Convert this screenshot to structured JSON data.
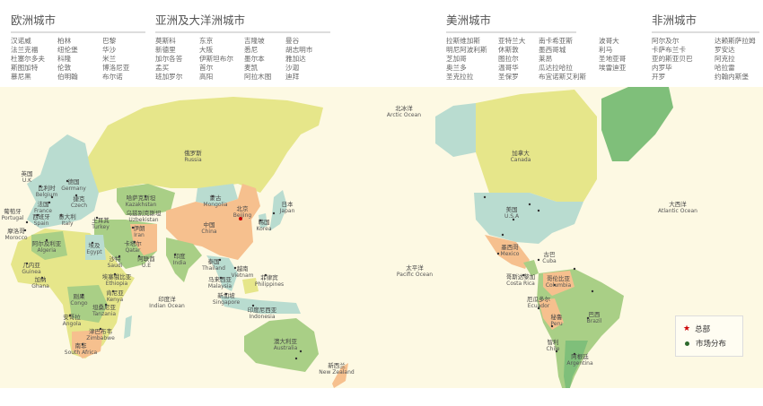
{
  "regions": [
    {
      "title": "欧洲城市",
      "columns": [
        [
          "汉诺威",
          "法兰克福",
          "杜塞尔多夫",
          "斯图加特",
          "慕尼黑"
        ],
        [
          "柏林",
          "纽伦堡",
          "科隆",
          "伦敦",
          "伯明翰"
        ],
        [
          "巴黎",
          "华沙",
          "米兰",
          "博洛尼亚",
          "布尔诺"
        ]
      ]
    },
    {
      "title": "亚洲及大洋洲城市",
      "columns": [
        [
          "莫斯科",
          "新德里",
          "加尔各答",
          "孟买",
          "班加罗尔"
        ],
        [
          "东京",
          "大阪",
          "伊斯坦布尔",
          "首尔",
          "高阳"
        ],
        [
          "吉隆坡",
          "悉尼",
          "墨尔本",
          "麦凯",
          "阿拉木图"
        ],
        [
          "曼谷",
          "胡志明市",
          "雅加达",
          "沙迦",
          "迪拜"
        ]
      ]
    },
    {
      "title": "美洲城市",
      "columns": [
        [
          "拉斯维加斯",
          "明尼阿波利斯",
          "芝加哥",
          "奥兰多",
          "圣克拉拉"
        ],
        [
          "亚特兰大",
          "休斯敦",
          "图拉尔",
          "温哥华",
          "圣保罗"
        ],
        [
          "南卡希亚斯",
          "墨西哥城",
          "莱昂",
          "瓜达拉哈拉",
          "布宜诺斯艾利斯"
        ],
        [
          "波哥大",
          "利马",
          "圣地亚哥",
          "埃雷迪亚"
        ]
      ]
    },
    {
      "title": "非洲城市",
      "columns": [
        [
          "阿尔及尔",
          "卡萨布兰卡",
          "亚的斯亚贝巴",
          "内罗毕",
          "开罗"
        ],
        [
          "达赖斯萨拉姆",
          "罗安达",
          "阿克拉",
          "哈拉雷",
          "约翰内斯堡"
        ]
      ]
    }
  ],
  "map_labels": [
    [
      "英国",
      "U.K"
    ],
    [
      "比利时",
      "Belgium"
    ],
    [
      "德国",
      "Germany"
    ],
    [
      "法国",
      "France"
    ],
    [
      "捷克",
      "Czech"
    ],
    [
      "西班牙",
      "Spain"
    ],
    [
      "意大利",
      "Italy"
    ],
    [
      "葡萄牙",
      "Portugal"
    ],
    [
      "土耳其",
      "Turkey"
    ],
    [
      "摩洛哥",
      "Morocco"
    ],
    [
      "阿尔及利亚",
      "Algeria"
    ],
    [
      "埃及",
      "Egypt"
    ],
    [
      "沙特",
      "Saudi"
    ],
    [
      "伊朗",
      "Iran"
    ],
    [
      "卡塔尔",
      "Qatar"
    ],
    [
      "阿联酋",
      "U.E"
    ],
    [
      "几内亚",
      "Guinea"
    ],
    [
      "加纳",
      "Ghana"
    ],
    [
      "埃塞俄比亚",
      "Ethiopia"
    ],
    [
      "肯尼亚",
      "Kenya"
    ],
    [
      "刚果",
      "Congo"
    ],
    [
      "坦桑尼亚",
      "Tanzania"
    ],
    [
      "安哥拉",
      "Angola"
    ],
    [
      "津巴布韦",
      "Zimbabwe"
    ],
    [
      "南非",
      "South Africa"
    ],
    [
      "哈萨克斯坦",
      "Kazakhstan"
    ],
    [
      "乌兹别克斯坦",
      "Uzbekistan"
    ],
    [
      "俄罗斯",
      "Russia"
    ],
    [
      "蒙古",
      "Mongolia"
    ],
    [
      "中国",
      "China"
    ],
    [
      "北京",
      "Beijing"
    ],
    [
      "韩国",
      "Korea"
    ],
    [
      "日本",
      "Japan"
    ],
    [
      "印度",
      "India"
    ],
    [
      "泰国",
      "Thailand"
    ],
    [
      "越南",
      "Vietnam"
    ],
    [
      "菲律宾",
      "Philippines"
    ],
    [
      "马来西亚",
      "Malaysia"
    ],
    [
      "新加坡",
      "Singapore"
    ],
    [
      "印度尼西亚",
      "Indonesia"
    ],
    [
      "印度洋",
      "Indian Ocean"
    ],
    [
      "澳大利亚",
      "Australia"
    ],
    [
      "新西兰",
      "New Zealand"
    ],
    [
      "北冰洋",
      "Arctic Ocean"
    ],
    [
      "太平洋",
      "Pacific Ocean"
    ],
    [
      "大西洋",
      "Atlantic Ocean"
    ],
    [
      "加拿大",
      "Canada"
    ],
    [
      "美国",
      "U.S.A"
    ],
    [
      "墨西哥",
      "Mexico"
    ],
    [
      "古巴",
      "Cuba"
    ],
    [
      "哥斯达黎加",
      "Costa Rica"
    ],
    [
      "哥伦比亚",
      "Columbia"
    ],
    [
      "厄瓜多尔",
      "Ecuador"
    ],
    [
      "秘鲁",
      "Peru"
    ],
    [
      "巴西",
      "Brazil"
    ],
    [
      "智利",
      "Chile"
    ],
    [
      "阿根廷",
      "Argentina"
    ]
  ],
  "legend": {
    "headquarters": "总部",
    "market": "市场分布"
  },
  "colors": {
    "ocean": "#fdf9e3",
    "headquarters": "#cc0000",
    "market": "#2d6a2d",
    "yellow": "#e6e68a",
    "green": "#a9cf86",
    "teal": "#b9dcd0",
    "orange": "#f6c08e",
    "darkgreen": "#7fbf7a"
  }
}
